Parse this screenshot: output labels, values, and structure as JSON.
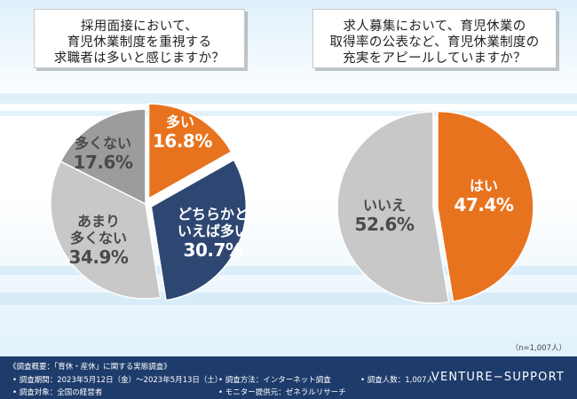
{
  "chart_data": [
    {
      "type": "pie",
      "title": "採用面接において、育児休業制度を重視する求職者は多いと感じますか？",
      "title_lines": [
        "採用面接において、",
        "育児休業制度を重視する",
        "求職者は多いと感じますか？"
      ],
      "slices": [
        {
          "label": "多い",
          "label_lines": [
            "多い"
          ],
          "value": 16.8,
          "value_label": "16.8%",
          "color": "#e8731f"
        },
        {
          "label": "どちらかといえば多い",
          "label_lines": [
            "どちらかと",
            "いえば多い"
          ],
          "value": 30.7,
          "value_label": "30.7%",
          "color": "#2e4772"
        },
        {
          "label": "あまり多くない",
          "label_lines": [
            "あまり",
            "多くない"
          ],
          "value": 34.9,
          "value_label": "34.9%",
          "color": "#c8c8c8"
        },
        {
          "label": "多くない",
          "label_lines": [
            "多くない"
          ],
          "value": 17.6,
          "value_label": "17.6%",
          "color": "#9c9c9c"
        }
      ]
    },
    {
      "type": "pie",
      "title": "求人募集において、育児休業の取得率の公表など、育児休業制度の充実をアピールしていますか？",
      "title_lines": [
        "求人募集において、育児休業の",
        "取得率の公表など、育児休業制度の",
        "充実をアピールしていますか？"
      ],
      "slices": [
        {
          "label": "はい",
          "label_lines": [
            "はい"
          ],
          "value": 47.4,
          "value_label": "47.4%",
          "color": "#e8731f"
        },
        {
          "label": "いいえ",
          "label_lines": [
            "いいえ"
          ],
          "value": 52.6,
          "value_label": "52.6%",
          "color": "#c8c8c8"
        }
      ]
    }
  ],
  "sample_note": "（n=1,007人）",
  "footer": {
    "heading": "《調査概要：「育休・産休」に関する実態調査》",
    "period": "• 調査期間：2023年5月12日（金）〜2023年5月13日（土）",
    "method": "• 調査方法：インターネット調査",
    "count": "• 調査人数：1,007人",
    "target": "• 調査対象：全国の経営者",
    "provider": "• モニター提供元：ゼネラルリサーチ",
    "brand": "VENTURE−SUPPORT"
  }
}
